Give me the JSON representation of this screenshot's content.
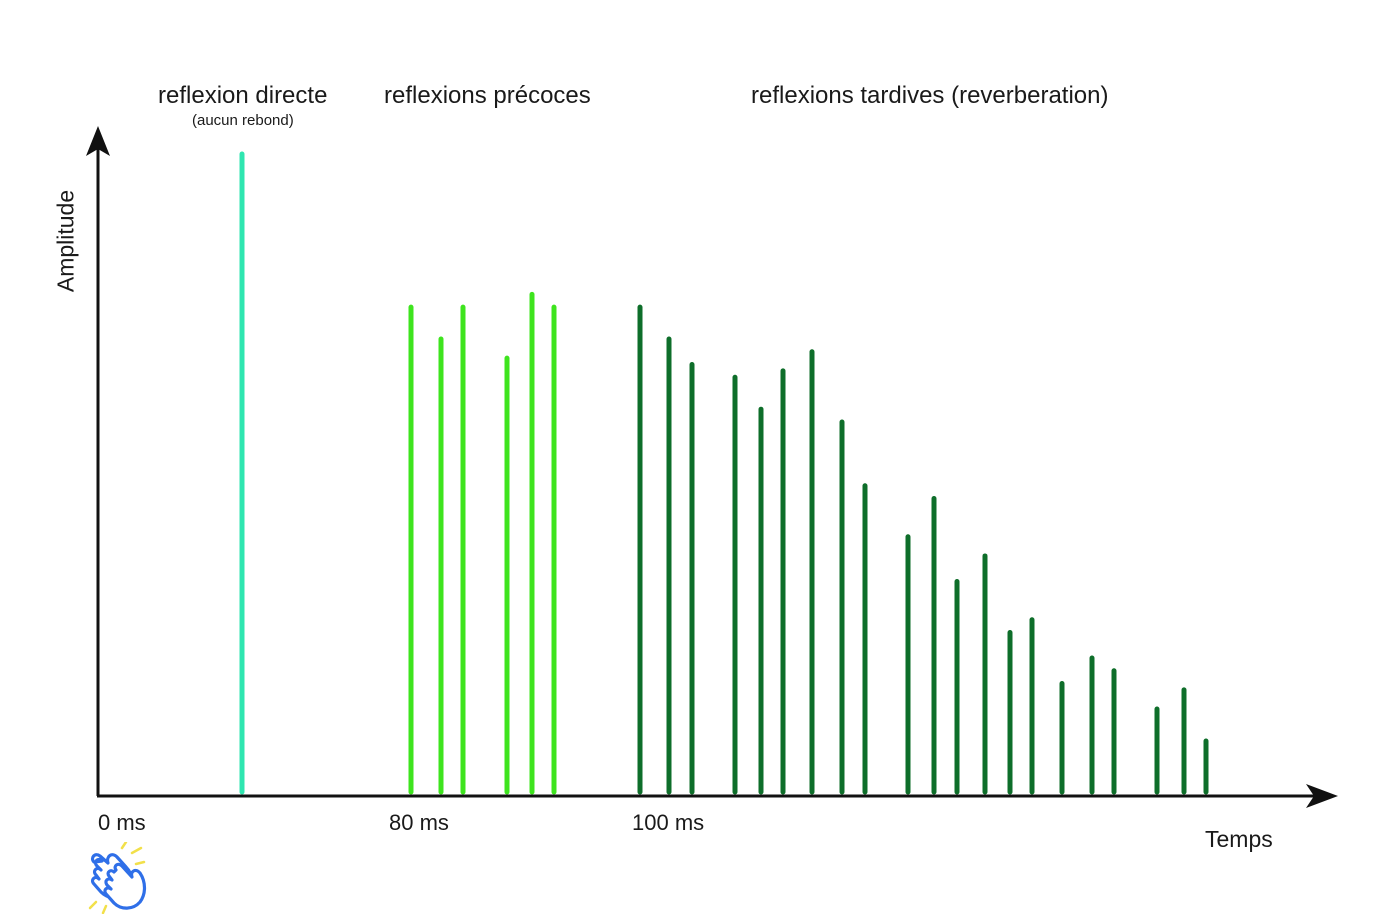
{
  "labels": {
    "direct": "reflexion directe",
    "direct_sub": "(aucun rebond)",
    "early": "reflexions précoces",
    "late": "reflexions tardives (reverberation)",
    "y_axis": "Amplitude",
    "x_axis": "Temps",
    "ticks": [
      "0 ms",
      "80 ms",
      "100 ms"
    ]
  },
  "icons": {
    "clap": "clapping-hands-icon"
  },
  "colors": {
    "axis": "#111111",
    "direct": "#2fe6b0",
    "early": "#3ee41e",
    "late": "#0e6e2a",
    "clap_blue": "#2f6fe8",
    "clap_spark": "#f2e04a"
  },
  "reflections": {
    "direct": [
      1.0
    ],
    "early": [
      0.76,
      0.71,
      0.76,
      0.68,
      0.78,
      0.76
    ],
    "late": [
      0.76,
      0.71,
      0.67,
      0.65,
      0.6,
      0.66,
      0.69,
      0.58,
      0.48,
      0.4,
      0.46,
      0.33,
      0.37,
      0.25,
      0.27,
      0.17,
      0.21,
      0.19,
      0.13,
      0.16,
      0.08
    ]
  }
}
